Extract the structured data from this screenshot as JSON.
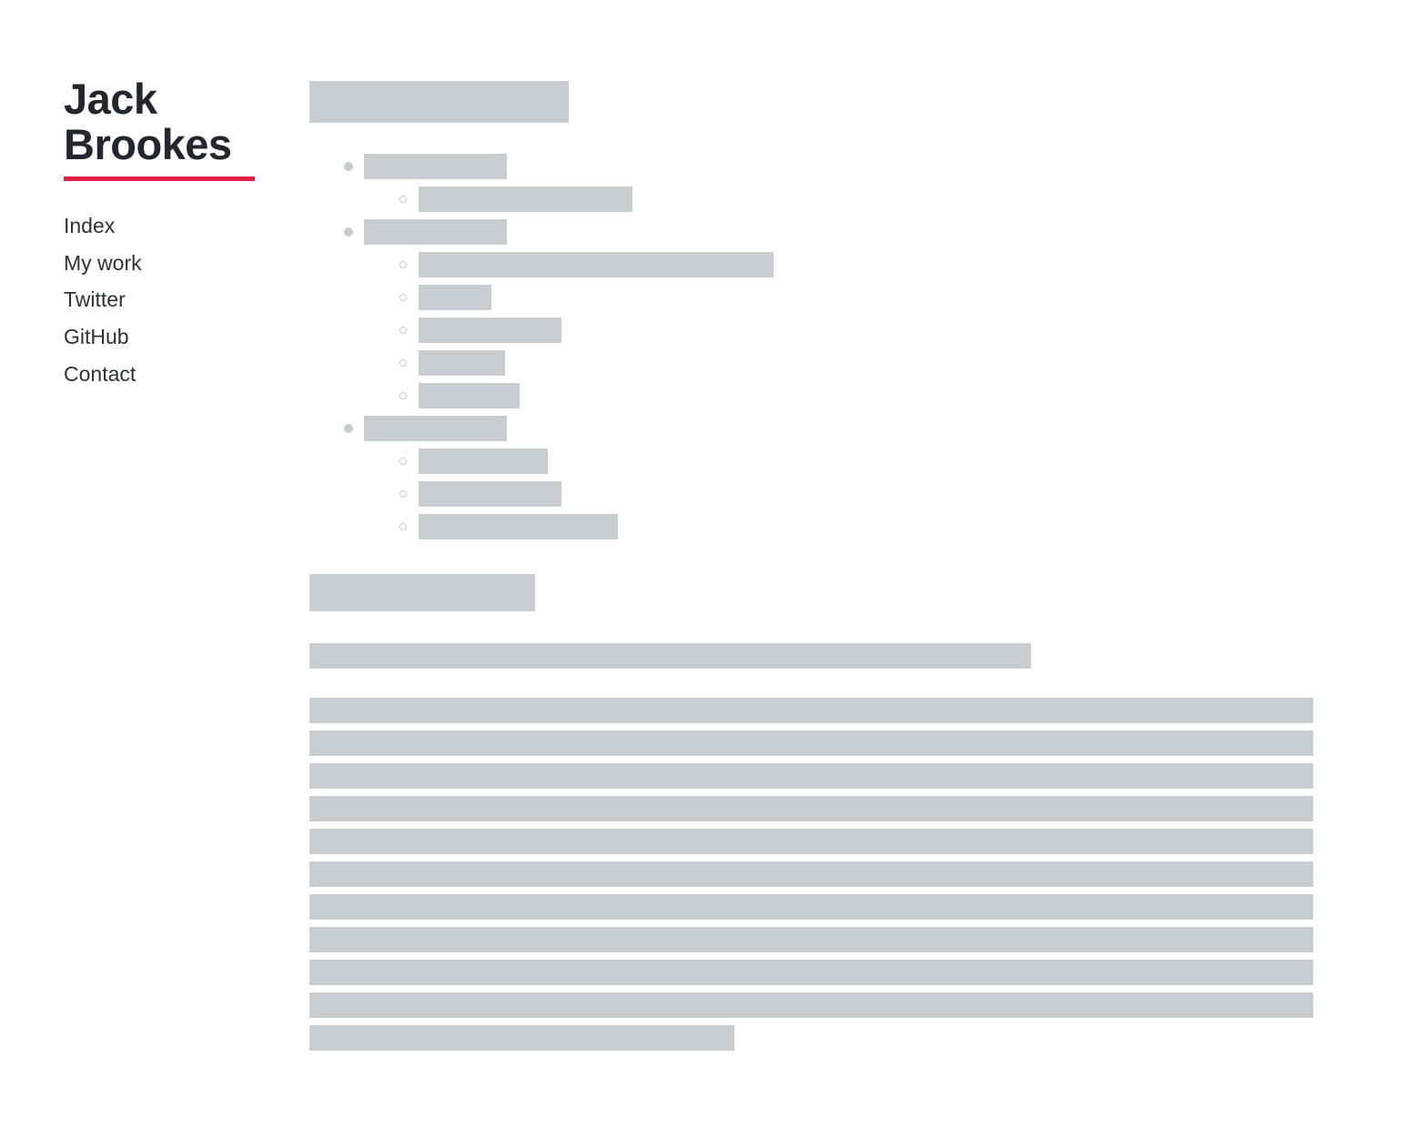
{
  "site": {
    "title": "Jack Brookes",
    "accent_color": "#e11d48",
    "text_color": "#22262e",
    "placeholder_color": "#c8cdd2"
  },
  "nav": {
    "items": [
      {
        "label": "Index"
      },
      {
        "label": "My work"
      },
      {
        "label": "Twitter"
      },
      {
        "label": "GitHub"
      },
      {
        "label": "Contact"
      }
    ]
  }
}
